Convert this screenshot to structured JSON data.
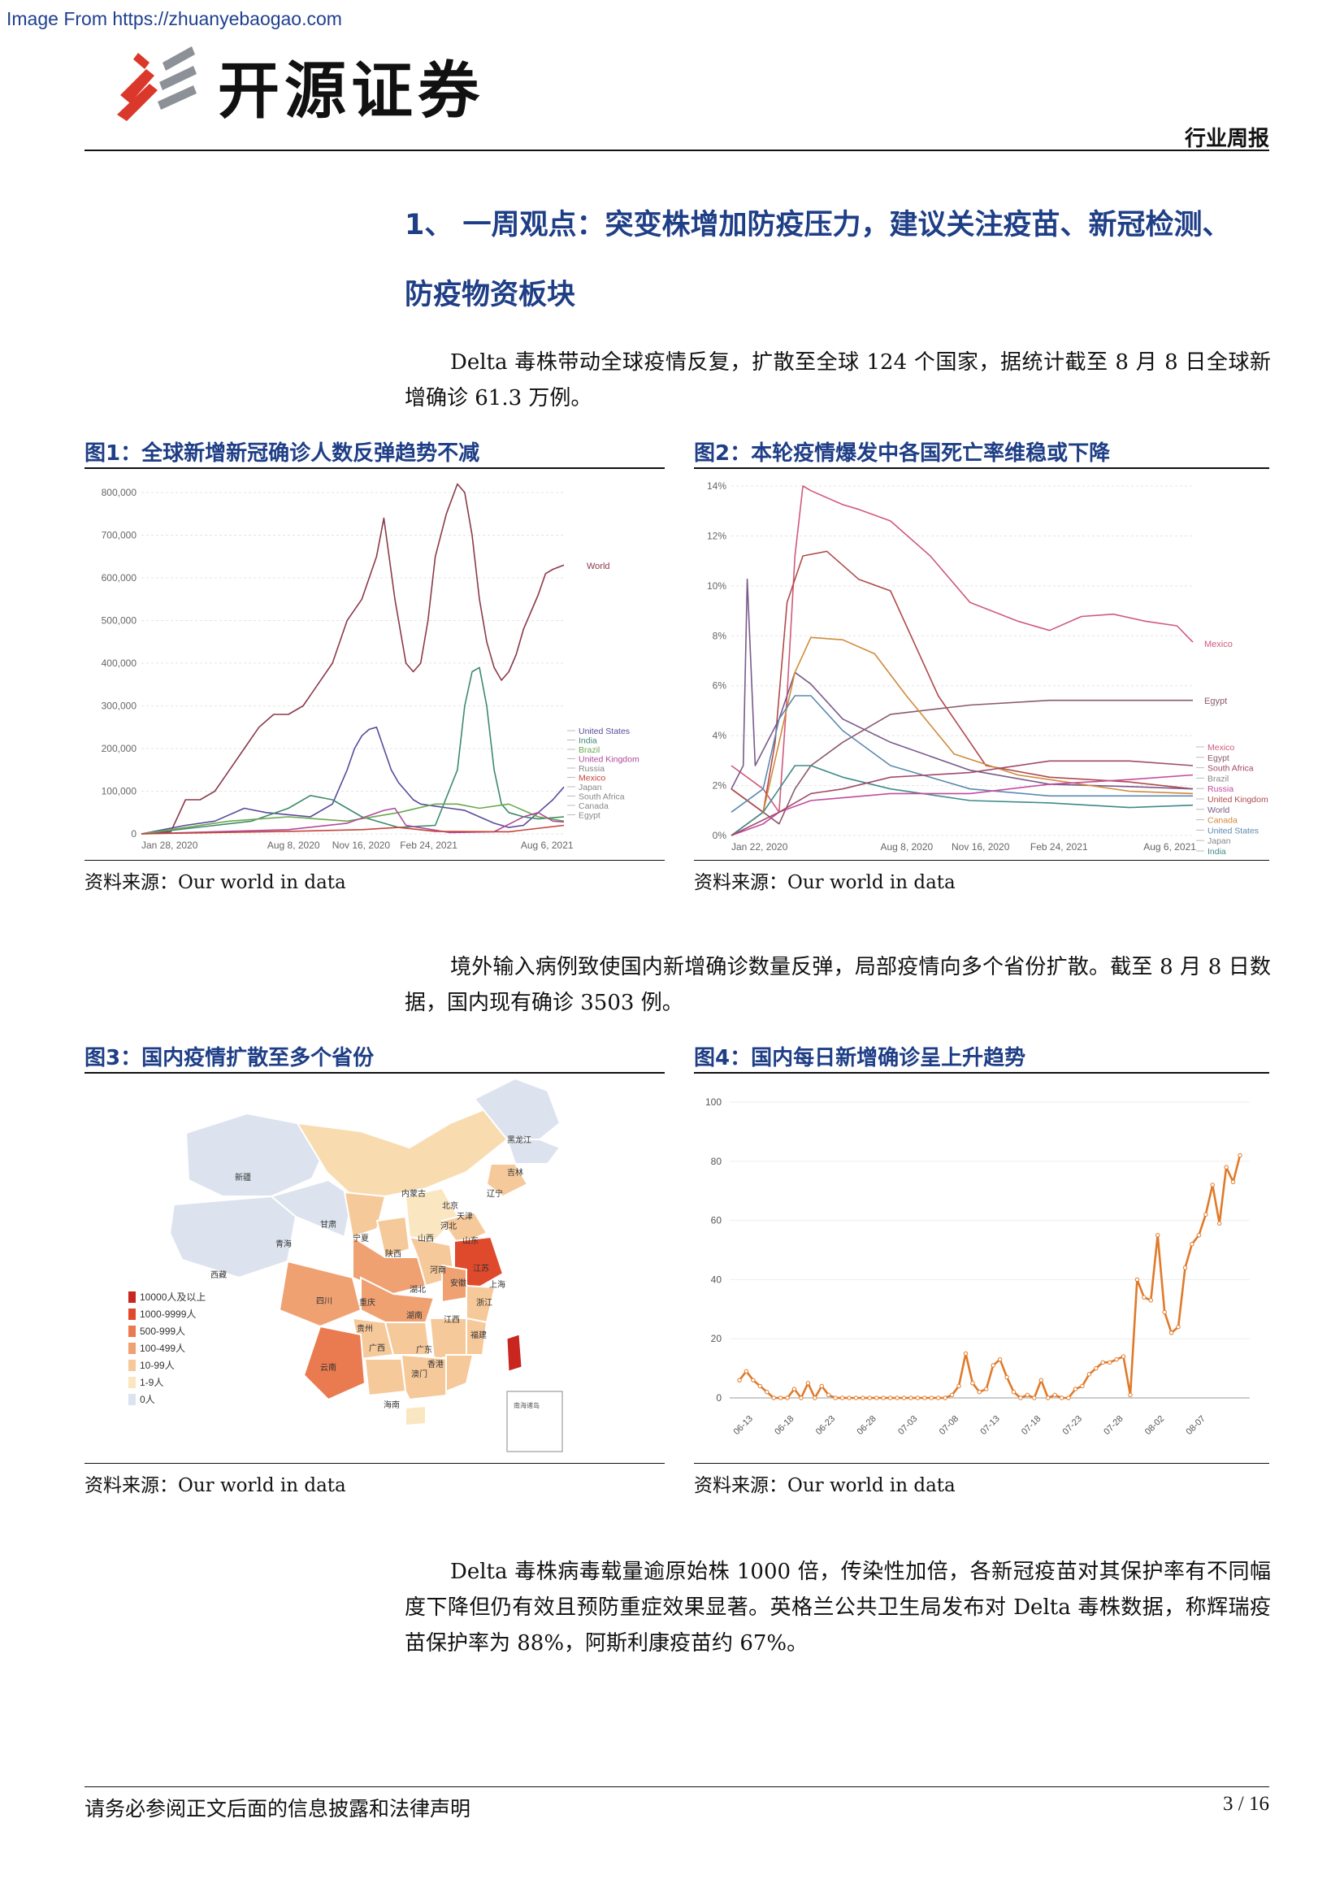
{
  "watermark": "Image From https://zhuanyebaogao.com",
  "header": {
    "brand": "开源证券",
    "report_type": "行业周报",
    "logo_icon": "kaiyuan-logo-icon"
  },
  "section": {
    "title_line1": "1、  一周观点：突变株增加防疫压力，建议关注疫苗、新冠检测、",
    "title_line2": "防疫物资板块"
  },
  "paragraphs": {
    "p1": "Delta 毒株带动全球疫情反复，扩散至全球 124 个国家，据统计截至 8 月 8 日全球新增确诊 61.3 万例。",
    "p2": "境外输入病例致使国内新增确诊数量反弹，局部疫情向多个省份扩散。截至 8 月 8 日数据，国内现有确诊 3503 例。",
    "p3": "Delta 毒株病毒载量逾原始株 1000 倍，传染性加倍，各新冠疫苗对其保护率有不同幅度下降但仍有效且预防重症效果显著。英格兰公共卫生局发布对 Delta 毒株数据，称辉瑞疫苗保护率为 88%，阿斯利康疫苗约 67%。"
  },
  "figures": {
    "fig1": {
      "title": "图1：全球新增新冠确诊人数反弹趋势不减",
      "source": "资料来源：Our world in data"
    },
    "fig2": {
      "title": "图2：本轮疫情爆发中各国死亡率维稳或下降",
      "source": "资料来源：Our world in data"
    },
    "fig3": {
      "title": "图3：国内疫情扩散至多个省份",
      "source": "资料来源：Our world in data"
    },
    "fig4": {
      "title": "图4：国内每日新增确诊呈上升趋势",
      "source": "资料来源：Our world in data"
    }
  },
  "map": {
    "legend": [
      {
        "label": "10000人及以上",
        "color": "#c8261e"
      },
      {
        "label": "1000-9999人",
        "color": "#e04a2c"
      },
      {
        "label": "500-999人",
        "color": "#ea7a4f"
      },
      {
        "label": "100-499人",
        "color": "#f0a172"
      },
      {
        "label": "10-99人",
        "color": "#f6c99a"
      },
      {
        "label": "1-9人",
        "color": "#fbe6c2"
      },
      {
        "label": "0人",
        "color": "#dde3ee"
      }
    ],
    "provinces": [
      "黑龙江",
      "吉林",
      "辽宁",
      "内蒙古",
      "北京",
      "天津",
      "河北",
      "新疆",
      "甘肃",
      "宁夏",
      "山西",
      "山东",
      "青海",
      "陕西",
      "河南",
      "江苏",
      "西藏",
      "四川",
      "湖北",
      "安徽",
      "上海",
      "重庆",
      "浙江",
      "贵州",
      "湖南",
      "江西",
      "云南",
      "广西",
      "广东",
      "福建",
      "香港",
      "澳门",
      "海南"
    ]
  },
  "chart_data": [
    {
      "type": "line",
      "id": "fig1",
      "x_ticks": [
        "Jan 28, 2020",
        "Aug 8, 2020",
        "Nov 16, 2020",
        "Feb 24, 2021",
        "Aug 6, 2021"
      ],
      "y_ticks": [
        "0",
        "100,000",
        "200,000",
        "300,000",
        "400,000",
        "500,000",
        "600,000",
        "700,000",
        "800,000"
      ],
      "ylim": [
        0,
        800000
      ],
      "x_range_days": [
        0,
        575
      ],
      "label_world": "World",
      "legend": [
        "United States",
        "India",
        "Brazil",
        "United Kingdom",
        "Russia",
        "Mexico",
        "Japan",
        "South Africa",
        "Canada",
        "Egypt"
      ],
      "series": [
        {
          "name": "World",
          "color": "#8b3a4a",
          "x": [
            0,
            40,
            60,
            80,
            100,
            120,
            140,
            160,
            180,
            200,
            220,
            240,
            260,
            280,
            300,
            320,
            330,
            345,
            360,
            370,
            380,
            390,
            400,
            415,
            430,
            440,
            450,
            460,
            470,
            480,
            490,
            500,
            510,
            520,
            530,
            540,
            550,
            560,
            575
          ],
          "y": [
            0,
            5000,
            80000,
            80000,
            100000,
            150000,
            200000,
            250000,
            280000,
            280000,
            300000,
            350000,
            400000,
            500000,
            550000,
            650000,
            740000,
            550000,
            400000,
            380000,
            400000,
            500000,
            650000,
            750000,
            820000,
            800000,
            700000,
            550000,
            450000,
            390000,
            360000,
            380000,
            420000,
            480000,
            520000,
            560000,
            610000,
            620000,
            630000
          ]
        },
        {
          "name": "United States",
          "color": "#5b4a9c",
          "x": [
            0,
            60,
            100,
            140,
            170,
            200,
            230,
            260,
            280,
            290,
            300,
            310,
            320,
            330,
            340,
            350,
            360,
            370,
            380,
            400,
            420,
            440,
            460,
            480,
            500,
            520,
            540,
            560,
            575
          ],
          "y": [
            0,
            20000,
            30000,
            60000,
            50000,
            45000,
            40000,
            70000,
            150000,
            200000,
            230000,
            245000,
            250000,
            200000,
            150000,
            120000,
            100000,
            80000,
            70000,
            65000,
            60000,
            55000,
            40000,
            25000,
            15000,
            20000,
            50000,
            80000,
            110000
          ]
        },
        {
          "name": "India",
          "color": "#3e8a6b",
          "x": [
            0,
            150,
            200,
            230,
            260,
            300,
            350,
            400,
            430,
            440,
            450,
            460,
            470,
            480,
            490,
            500,
            520,
            540,
            575
          ],
          "y": [
            0,
            30000,
            60000,
            90000,
            80000,
            40000,
            15000,
            20000,
            150000,
            300000,
            380000,
            390000,
            300000,
            150000,
            70000,
            50000,
            40000,
            35000,
            40000
          ]
        },
        {
          "name": "Brazil",
          "color": "#6aa84f",
          "x": [
            0,
            120,
            200,
            280,
            350,
            400,
            430,
            460,
            500,
            540,
            575
          ],
          "y": [
            0,
            30000,
            40000,
            30000,
            50000,
            70000,
            70000,
            60000,
            70000,
            40000,
            30000
          ]
        },
        {
          "name": "United Kingdom",
          "color": "#b04a9a",
          "x": [
            0,
            200,
            280,
            330,
            345,
            360,
            420,
            480,
            520,
            540,
            560,
            575
          ],
          "y": [
            0,
            10000,
            25000,
            55000,
            60000,
            20000,
            3000,
            5000,
            40000,
            50000,
            30000,
            28000
          ]
        },
        {
          "name": "Mexico",
          "color": "#c4453a",
          "x": [
            0,
            200,
            300,
            350,
            400,
            500,
            575
          ],
          "y": [
            0,
            6000,
            10000,
            15000,
            6000,
            5000,
            20000
          ]
        }
      ]
    },
    {
      "type": "line",
      "id": "fig2",
      "x_ticks": [
        "Jan 22, 2020",
        "Aug 8, 2020",
        "Nov 16, 2020",
        "Feb 24, 2021",
        "Aug 6, 2021"
      ],
      "y_ticks": [
        "0%",
        "2%",
        "4%",
        "6%",
        "8%",
        "10%",
        "12%",
        "14%"
      ],
      "ylim": [
        0,
        15
      ],
      "x_range_days": [
        0,
        580
      ],
      "legend": [
        "Mexico",
        "Egypt",
        "South Africa",
        "Brazil",
        "Russia",
        "United Kingdom",
        "World",
        "Canada",
        "United States",
        "Japan",
        "India"
      ],
      "series": [
        {
          "name": "Mexico",
          "color": "#d05a7a",
          "x": [
            0,
            40,
            60,
            70,
            80,
            90,
            100,
            120,
            140,
            160,
            200,
            250,
            300,
            360,
            400,
            440,
            480,
            520,
            560,
            580
          ],
          "y": [
            3,
            2,
            1,
            6,
            12,
            15,
            14.8,
            14.5,
            14.2,
            14,
            13.5,
            12,
            10,
            9.2,
            8.8,
            9.4,
            9.5,
            9.2,
            9,
            8.3
          ]
        },
        {
          "name": "Egypt",
          "color": "#8b5a6a",
          "x": [
            0,
            40,
            60,
            80,
            100,
            140,
            200,
            300,
            400,
            500,
            580
          ],
          "y": [
            2,
            1,
            0.5,
            2,
            3,
            4,
            5.2,
            5.6,
            5.8,
            5.8,
            5.8
          ]
        },
        {
          "name": "United Kingdom",
          "color": "#b04a4a",
          "x": [
            0,
            40,
            55,
            70,
            90,
            120,
            160,
            200,
            260,
            320,
            400,
            500,
            580
          ],
          "y": [
            2,
            1,
            4,
            10,
            12,
            12.2,
            11,
            10.5,
            6,
            3,
            2.5,
            2.3,
            2
          ]
        },
        {
          "name": "World",
          "color": "#7a5a8a",
          "x": [
            0,
            15,
            20,
            30,
            60,
            80,
            100,
            140,
            200,
            300,
            400,
            500,
            580
          ],
          "y": [
            2,
            3,
            11,
            3,
            5,
            7,
            6.5,
            5,
            4,
            2.8,
            2.2,
            2.1,
            2
          ]
        },
        {
          "name": "Canada",
          "color": "#d08a3a",
          "x": [
            0,
            40,
            60,
            80,
            100,
            140,
            180,
            220,
            280,
            360,
            500,
            580
          ],
          "y": [
            0,
            1,
            4,
            7,
            8.5,
            8.4,
            7.8,
            6,
            3.5,
            2.6,
            1.9,
            1.8
          ]
        },
        {
          "name": "United States",
          "color": "#5b8ab0",
          "x": [
            0,
            40,
            60,
            80,
            100,
            140,
            200,
            300,
            400,
            500,
            580
          ],
          "y": [
            1,
            2,
            5,
            6,
            6,
            4.5,
            3,
            2,
            1.7,
            1.7,
            1.7
          ]
        },
        {
          "name": "India",
          "color": "#3e8a8a",
          "x": [
            0,
            40,
            60,
            80,
            100,
            140,
            200,
            300,
            400,
            500,
            580
          ],
          "y": [
            0,
            1,
            2,
            3,
            3,
            2.5,
            2,
            1.5,
            1.4,
            1.2,
            1.3
          ]
        },
        {
          "name": "Russia",
          "color": "#c44aa0",
          "x": [
            0,
            40,
            60,
            100,
            200,
            300,
            400,
            500,
            580
          ],
          "y": [
            0,
            0.5,
            1,
            1.5,
            1.8,
            1.8,
            2.2,
            2.4,
            2.6
          ]
        },
        {
          "name": "South Africa",
          "color": "#a04a6a",
          "x": [
            0,
            60,
            100,
            140,
            200,
            300,
            400,
            500,
            580
          ],
          "y": [
            0,
            1,
            1.8,
            2,
            2.5,
            2.7,
            3.2,
            3.2,
            3
          ]
        }
      ]
    },
    {
      "type": "line",
      "id": "fig4",
      "x_ticks": [
        "06-13",
        "06-18",
        "06-23",
        "06-28",
        "07-03",
        "07-08",
        "07-13",
        "07-18",
        "07-23",
        "07-28",
        "08-02",
        "08-07"
      ],
      "y_ticks": [
        "0",
        "20",
        "40",
        "60",
        "80",
        "100"
      ],
      "ylim": [
        0,
        100
      ],
      "series": [
        {
          "name": "",
          "color": "#e07a2a",
          "values": [
            6,
            9,
            6,
            4,
            2,
            0,
            0,
            0,
            3,
            0,
            5,
            0,
            4,
            1,
            0,
            0,
            0,
            0,
            0,
            0,
            0,
            0,
            0,
            0,
            0,
            0,
            0,
            0,
            0,
            0,
            0,
            1,
            4,
            15,
            5,
            2,
            3,
            11,
            13,
            7,
            2,
            0,
            1,
            0,
            6,
            0,
            1,
            0,
            0,
            3,
            4,
            8,
            10,
            12,
            12,
            13,
            14,
            1,
            40,
            34,
            33,
            55,
            29,
            22,
            24,
            44,
            52,
            55,
            62,
            72,
            59,
            78,
            73,
            82
          ]
        }
      ]
    }
  ],
  "footer": {
    "disclaimer": "请务必参阅正文后面的信息披露和法律声明",
    "page": "3 / 16"
  }
}
